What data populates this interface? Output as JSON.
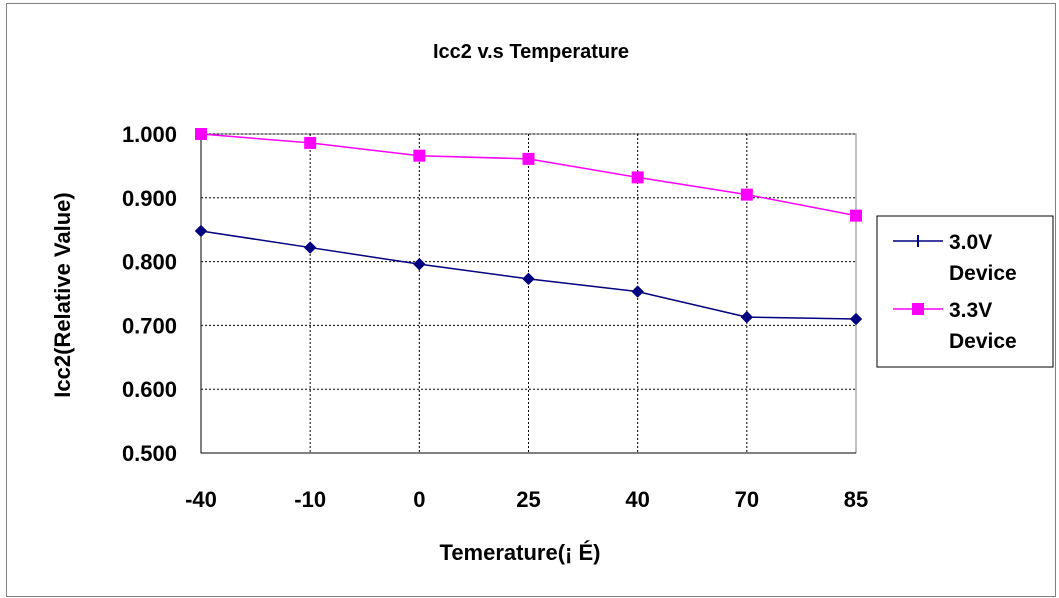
{
  "chart_data": {
    "type": "line",
    "title": "Icc2 v.s Temperature",
    "xlabel": "Temeratu­re(¡ É)",
    "ylabel": "Icc2(Relative Value)",
    "categories": [
      "-40",
      "-10",
      "0",
      "25",
      "40",
      "70",
      "85"
    ],
    "ylim": [
      0.5,
      1.0
    ],
    "yticks": [
      "0.500",
      "0.600",
      "0.700",
      "0.800",
      "0.900",
      "1.000"
    ],
    "grid": true,
    "legend_position": "right",
    "series": [
      {
        "name": "3.0V Device",
        "name_lines": [
          "3.0V",
          "Device"
        ],
        "color": "#000080",
        "marker": "diamond",
        "values": [
          0.848,
          0.822,
          0.796,
          0.773,
          0.753,
          0.713,
          0.71
        ]
      },
      {
        "name": "3.3V Device",
        "name_lines": [
          "3.3V",
          "Device"
        ],
        "color": "#ff00ff",
        "marker": "square",
        "values": [
          1.0,
          0.986,
          0.966,
          0.961,
          0.932,
          0.905,
          0.872
        ]
      }
    ]
  }
}
